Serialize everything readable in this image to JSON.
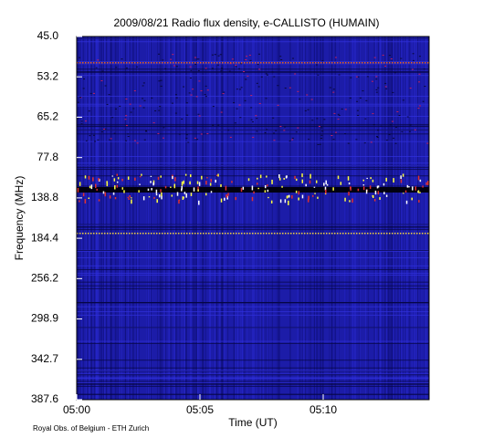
{
  "chart_data": {
    "type": "spectrogram",
    "title": "2009/08/21  Radio flux density, e-CALLISTO (HUMAIN)",
    "x_label": "Time (UT)",
    "y_label": "Frequency (MHz)",
    "footer": "Royal Obs. of Belgium - ETH Zurich",
    "xticks": [
      "05:00",
      "05:05",
      "05:10"
    ],
    "yticks": [
      {
        "value": 45,
        "label": "45.0"
      },
      {
        "value": 53.2,
        "label": "53.2"
      },
      {
        "value": 65.2,
        "label": "65.2"
      },
      {
        "value": 77.8,
        "label": "77.8"
      },
      {
        "value": 138.8,
        "label": "138.8"
      },
      {
        "value": 184.4,
        "label": "184.4"
      },
      {
        "value": 256.2,
        "label": "256.2"
      },
      {
        "value": 298.9,
        "label": "298.9"
      },
      {
        "value": 342.7,
        "label": "342.7"
      },
      {
        "value": 387.6,
        "label": "387.6"
      }
    ]
  }
}
